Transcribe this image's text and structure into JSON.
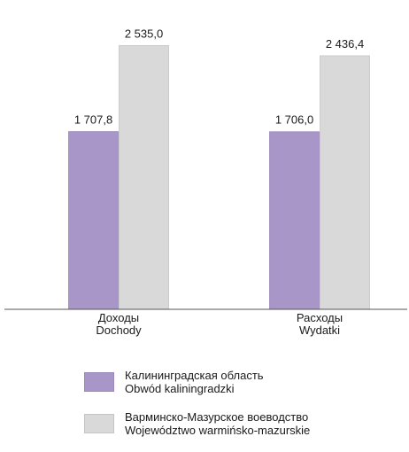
{
  "chart_data": {
    "type": "bar",
    "categories": [
      {
        "line1": "Доходы",
        "line2": "Dochody"
      },
      {
        "line1": "Расходы",
        "line2": "Wydatki"
      }
    ],
    "series": [
      {
        "name_line1": "Калининградская область",
        "name_line2": "Obwód kaliningradzki",
        "color": "#a996c8",
        "values": [
          1707.8,
          1706.0
        ],
        "value_labels": [
          "1 707,8",
          "1 706,0"
        ]
      },
      {
        "name_line1": "Варминско-Мазурское воеводство",
        "name_line2": "Województwo warmińsko-mazurskie",
        "color": "#d9d9d9",
        "values": [
          2535.0,
          2436.4
        ],
        "value_labels": [
          "2 535,0",
          "2 436,4"
        ]
      }
    ],
    "ylim": [
      0,
      2700
    ],
    "grid": false,
    "legend_position": "bottom"
  }
}
